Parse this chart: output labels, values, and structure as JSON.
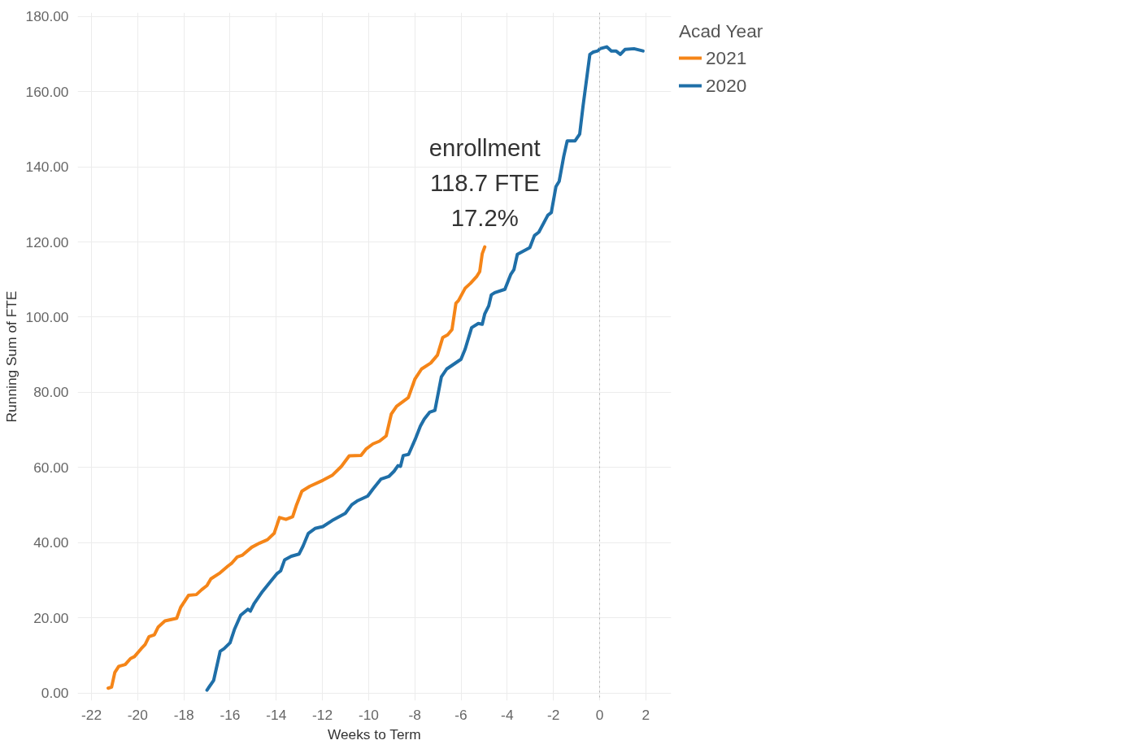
{
  "chart_data": {
    "type": "line",
    "xlabel": "Weeks to Term",
    "ylabel": "Running Sum of FTE",
    "legend_title": "Acad Year",
    "legend": "top right",
    "grid": true,
    "line_style": "solid",
    "marker": "none",
    "xlim": [
      -22.6,
      3.1
    ],
    "ylim": [
      -2,
      181
    ],
    "xticks": [
      -22,
      -20,
      -18,
      -16,
      -14,
      -12,
      -10,
      -8,
      -6,
      -4,
      -2,
      0,
      2
    ],
    "yticks": [
      {
        "value": 0,
        "label": "0.00"
      },
      {
        "value": 20,
        "label": "20.00"
      },
      {
        "value": 40,
        "label": "40.00"
      },
      {
        "value": 60,
        "label": "60.00"
      },
      {
        "value": 80,
        "label": "80.00"
      },
      {
        "value": 100,
        "label": "100.00"
      },
      {
        "value": 120,
        "label": "120.00"
      },
      {
        "value": 140,
        "label": "140.00"
      },
      {
        "value": 160,
        "label": "160.00"
      },
      {
        "value": 180,
        "label": "180.00"
      }
    ],
    "ref_lines": [
      {
        "axis": "x",
        "value": 0,
        "label": null,
        "color": "#b0b0b0",
        "line_style": "dotted"
      }
    ],
    "annotations": [
      {
        "text": "enrollment\n118.7 FTE\n17.2%",
        "x": -4.97,
        "y": 118.7
      }
    ],
    "series": [
      {
        "name": "2021",
        "color": "#f58518",
        "x": [
          -21.28,
          -21.13,
          -20.99,
          -20.82,
          -20.54,
          -20.31,
          -20.14,
          -19.85,
          -19.68,
          -19.51,
          -19.28,
          -19.11,
          -18.82,
          -18.31,
          -18.14,
          -17.8,
          -17.46,
          -17.23,
          -17.0,
          -16.83,
          -16.43,
          -16.09,
          -15.92,
          -15.69,
          -15.46,
          -15.06,
          -14.72,
          -14.38,
          -14.09,
          -13.86,
          -13.58,
          -13.29,
          -13.12,
          -12.89,
          -12.55,
          -11.98,
          -11.58,
          -11.18,
          -10.84,
          -10.33,
          -10.1,
          -9.81,
          -9.53,
          -9.24,
          -9.02,
          -8.79,
          -8.28,
          -7.99,
          -7.71,
          -7.31,
          -7.02,
          -6.79,
          -6.58,
          -6.39,
          -6.22,
          -6.11,
          -5.82,
          -5.59,
          -5.31,
          -5.19,
          -5.08,
          -4.97
        ],
        "values": [
          1.3,
          1.6,
          5.5,
          7.1,
          7.6,
          9.2,
          9.7,
          11.8,
          12.9,
          15.0,
          15.5,
          17.6,
          19.2,
          19.9,
          22.8,
          26.0,
          26.2,
          27.5,
          28.6,
          30.4,
          32.0,
          33.8,
          34.6,
          36.2,
          36.7,
          38.8,
          39.9,
          40.8,
          42.5,
          46.7,
          46.2,
          46.9,
          50.1,
          53.7,
          55.0,
          56.6,
          57.9,
          60.3,
          63.1,
          63.2,
          65.0,
          66.3,
          67.0,
          68.4,
          74.2,
          76.3,
          78.6,
          83.6,
          86.2,
          87.8,
          89.9,
          94.6,
          95.3,
          96.7,
          103.7,
          104.4,
          107.7,
          109.0,
          110.9,
          112.1,
          116.9,
          118.7
        ]
      },
      {
        "name": "2020",
        "color": "#1f6fa8",
        "x": [
          -17.0,
          -16.71,
          -16.43,
          -16.26,
          -16.0,
          -15.8,
          -15.54,
          -15.23,
          -15.12,
          -14.95,
          -14.6,
          -14.26,
          -13.98,
          -13.81,
          -13.64,
          -13.35,
          -13.01,
          -12.84,
          -12.61,
          -12.32,
          -11.98,
          -11.58,
          -11.01,
          -10.73,
          -10.5,
          -10.04,
          -9.81,
          -9.47,
          -9.13,
          -8.9,
          -8.73,
          -8.62,
          -8.5,
          -8.27,
          -7.99,
          -7.76,
          -7.59,
          -7.36,
          -7.13,
          -6.85,
          -6.62,
          -6.0,
          -5.82,
          -5.54,
          -5.25,
          -5.08,
          -4.97,
          -4.8,
          -4.69,
          -4.54,
          -4.1,
          -3.85,
          -3.71,
          -3.56,
          -3.02,
          -2.82,
          -2.63,
          -2.24,
          -2.09,
          -1.89,
          -1.75,
          -1.55,
          -1.4,
          -1.06,
          -0.86,
          -0.72,
          -0.42,
          -0.27,
          -0.08,
          0.02,
          0.31,
          0.51,
          0.71,
          0.9,
          1.1,
          1.49,
          1.88
        ],
        "values": [
          0.8,
          3.4,
          11.1,
          11.8,
          13.4,
          17.1,
          20.7,
          22.3,
          21.8,
          23.9,
          27.0,
          29.6,
          31.7,
          32.5,
          35.4,
          36.4,
          37.0,
          39.1,
          42.5,
          43.8,
          44.3,
          45.9,
          47.8,
          50.1,
          51.1,
          52.4,
          54.3,
          56.9,
          57.6,
          59.0,
          60.5,
          60.3,
          63.2,
          63.5,
          67.4,
          71.0,
          72.9,
          74.7,
          75.2,
          84.1,
          86.2,
          88.8,
          91.5,
          97.2,
          98.3,
          98.1,
          100.9,
          103.0,
          105.9,
          106.5,
          107.4,
          111.3,
          112.6,
          116.7,
          118.5,
          121.7,
          122.6,
          127.1,
          127.8,
          134.7,
          136.1,
          142.8,
          146.9,
          146.9,
          148.7,
          155.9,
          169.9,
          170.5,
          170.8,
          171.4,
          171.9,
          170.8,
          170.8,
          169.9,
          171.2,
          171.4,
          170.8
        ]
      }
    ]
  }
}
